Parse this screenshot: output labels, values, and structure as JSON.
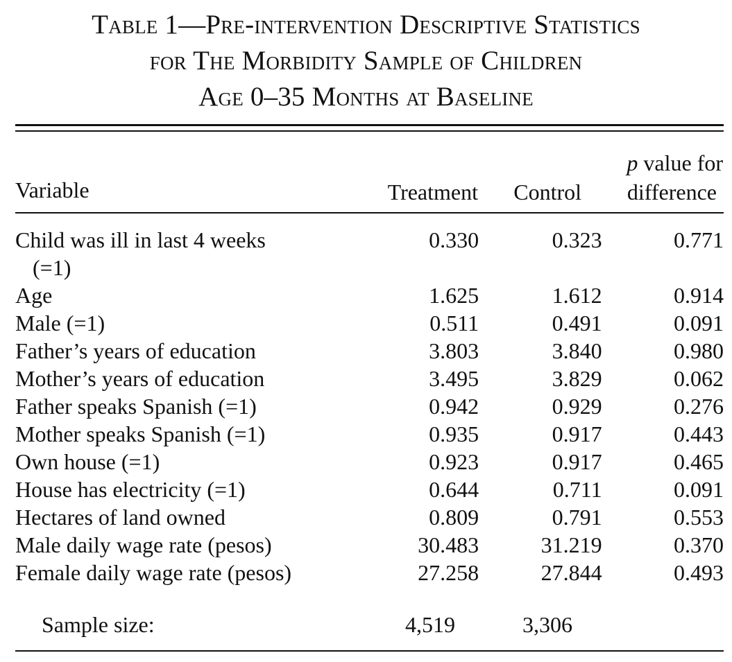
{
  "caption": {
    "line1": "Table 1—Pre-intervention Descriptive Statistics",
    "line2": "for The Morbidity Sample of Children",
    "line3": "Age 0–35 Months at Baseline"
  },
  "header": {
    "variable": "Variable",
    "treatment": "Treatment",
    "control": "Control",
    "pvalue_italic": "p",
    "pvalue_rest": " value for",
    "pvalue_line2": "difference"
  },
  "rows": [
    {
      "variable": "Child was ill in last 4 weeks",
      "variable_cont": "(=1)",
      "treatment": "0.330",
      "control": "0.323",
      "p": "0.771"
    },
    {
      "variable": "Age",
      "treatment": "1.625",
      "control": "1.612",
      "p": "0.914"
    },
    {
      "variable": "Male (=1)",
      "treatment": "0.511",
      "control": "0.491",
      "p": "0.091"
    },
    {
      "variable": "Father’s years of education",
      "treatment": "3.803",
      "control": "3.840",
      "p": "0.980"
    },
    {
      "variable": "Mother’s years of education",
      "treatment": "3.495",
      "control": "3.829",
      "p": "0.062"
    },
    {
      "variable": "Father speaks Spanish (=1)",
      "treatment": "0.942",
      "control": "0.929",
      "p": "0.276"
    },
    {
      "variable": "Mother speaks Spanish (=1)",
      "treatment": "0.935",
      "control": "0.917",
      "p": "0.443"
    },
    {
      "variable": "Own house (=1)",
      "treatment": "0.923",
      "control": "0.917",
      "p": "0.465"
    },
    {
      "variable": "House has electricity (=1)",
      "treatment": "0.644",
      "control": "0.711",
      "p": "0.091"
    },
    {
      "variable": "Hectares of land owned",
      "treatment": "0.809",
      "control": "0.791",
      "p": "0.553"
    },
    {
      "variable": "Male daily wage rate (pesos)",
      "treatment": "30.483",
      "control": "31.219",
      "p": "0.370"
    },
    {
      "variable": "Female daily wage rate (pesos)",
      "treatment": "27.258",
      "control": "27.844",
      "p": "0.493"
    }
  ],
  "sample": {
    "label": "Sample size:",
    "treatment": "4,519",
    "control": "3,306"
  }
}
